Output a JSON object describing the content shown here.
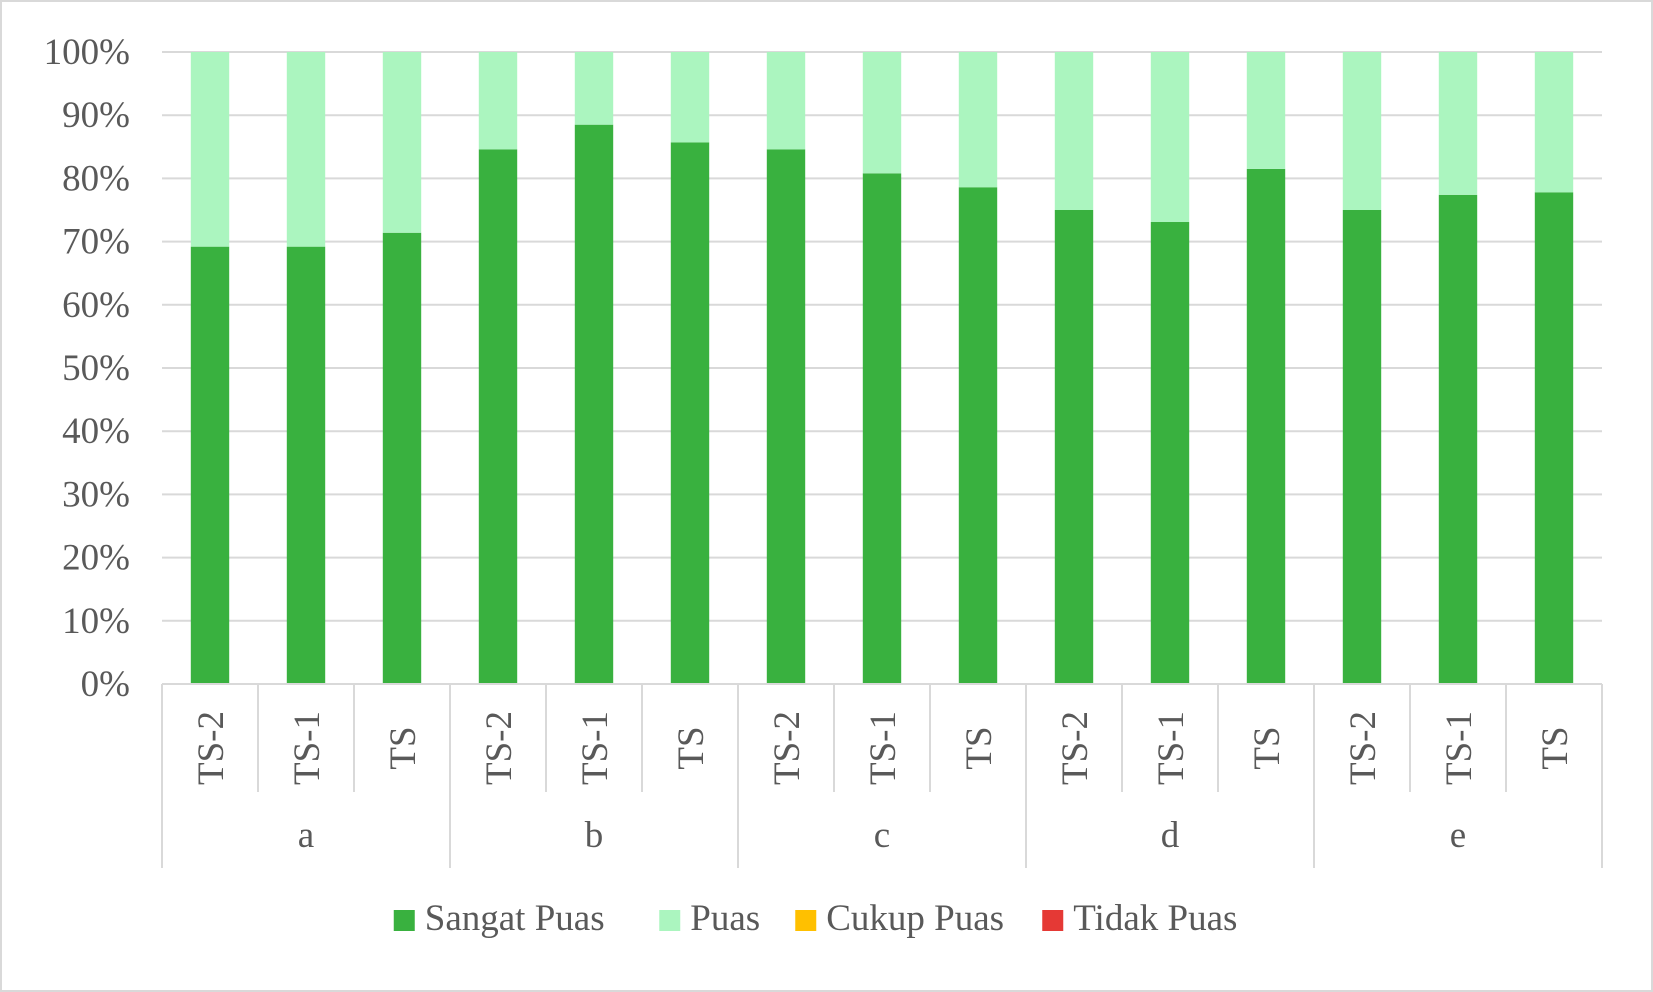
{
  "chart_data": {
    "type": "bar",
    "stacked": true,
    "normalized": true,
    "title": "",
    "xlabel": "",
    "ylabel": "",
    "ylim": [
      0,
      100
    ],
    "y_ticks": [
      "0%",
      "10%",
      "20%",
      "30%",
      "40%",
      "50%",
      "60%",
      "70%",
      "80%",
      "90%",
      "100%"
    ],
    "grid": true,
    "legend_position": "bottom",
    "groups": [
      {
        "label": "a",
        "categories": [
          "TS-2",
          "TS-1",
          "TS"
        ]
      },
      {
        "label": "b",
        "categories": [
          "TS-2",
          "TS-1",
          "TS"
        ]
      },
      {
        "label": "c",
        "categories": [
          "TS-2",
          "TS-1",
          "TS"
        ]
      },
      {
        "label": "d",
        "categories": [
          "TS-2",
          "TS-1",
          "TS"
        ]
      },
      {
        "label": "e",
        "categories": [
          "TS-2",
          "TS-1",
          "TS"
        ]
      }
    ],
    "series": [
      {
        "name": "Sangat Puas",
        "color": "#39b13f",
        "values": [
          69.2,
          69.2,
          71.4,
          84.6,
          88.5,
          85.7,
          84.6,
          80.8,
          78.6,
          75.0,
          73.1,
          81.5,
          75.0,
          77.4,
          77.8
        ]
      },
      {
        "name": "Puas",
        "color": "#abf5bf",
        "values": [
          30.8,
          30.8,
          28.6,
          15.4,
          11.5,
          14.3,
          15.4,
          19.2,
          21.4,
          25.0,
          26.9,
          18.5,
          25.0,
          22.6,
          22.2
        ]
      },
      {
        "name": "Cukup Puas",
        "color": "#ffc000",
        "values": [
          0,
          0,
          0,
          0,
          0,
          0,
          0,
          0,
          0,
          0,
          0,
          0,
          0,
          0,
          0
        ]
      },
      {
        "name": "Tidak Puas",
        "color": "#e53935",
        "values": [
          0,
          0,
          0,
          0,
          0,
          0,
          0,
          0,
          0,
          0,
          0,
          0,
          0,
          0,
          0
        ]
      }
    ]
  }
}
